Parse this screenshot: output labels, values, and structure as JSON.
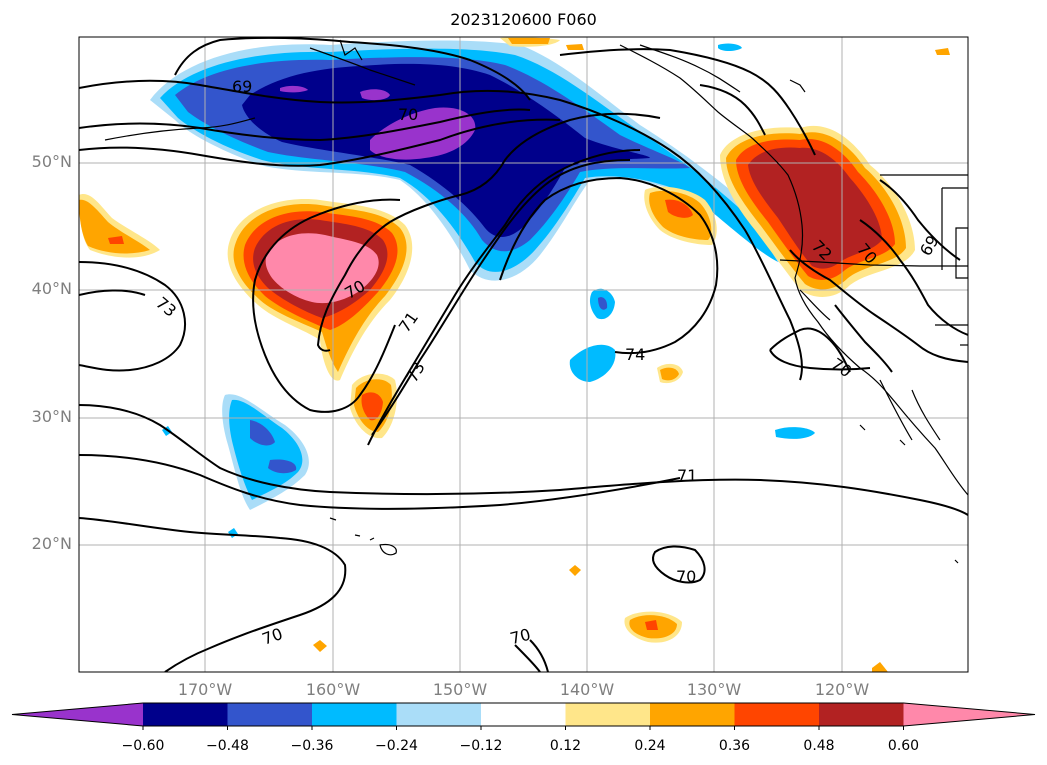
{
  "title": "2023120600 F060",
  "map": {
    "lat_labels": [
      {
        "text": "50°N",
        "lat": 50
      },
      {
        "text": "40°N",
        "lat": 40
      },
      {
        "text": "30°N",
        "lat": 30
      },
      {
        "text": "20°N",
        "lat": 20
      }
    ],
    "lon_labels": [
      {
        "text": "170°W",
        "lon": -170
      },
      {
        "text": "160°W",
        "lon": -160
      },
      {
        "text": "150°W",
        "lon": -150
      },
      {
        "text": "140°W",
        "lon": -140
      },
      {
        "text": "130°W",
        "lon": -130
      },
      {
        "text": "120°W",
        "lon": -120
      }
    ],
    "contour_labels": [
      "69",
      "70",
      "70",
      "73",
      "71",
      "73",
      "74",
      "72",
      "70",
      "69",
      "71",
      "70",
      "70",
      "70",
      "70"
    ],
    "grid": true
  },
  "colorbar": {
    "ticks": [
      "−0.60",
      "−0.48",
      "−0.36",
      "−0.24",
      "−0.12",
      "0.12",
      "0.24",
      "0.36",
      "0.48",
      "0.60"
    ],
    "colors": [
      "#9933cc",
      "#00008b",
      "#3355cc",
      "#00bbff",
      "#aaddf8",
      "#ffffff",
      "#ffe68a",
      "#ffa500",
      "#ff4500",
      "#b22222",
      "#ff88aa"
    ],
    "extend": "both"
  }
}
